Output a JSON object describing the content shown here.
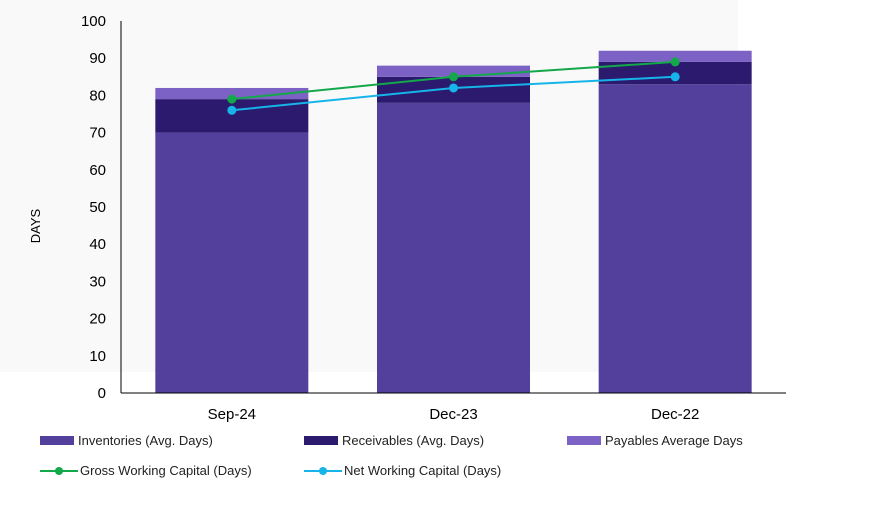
{
  "chart_data": {
    "type": "bar",
    "stacked": true,
    "categories": [
      "Sep-24",
      "Dec-23",
      "Dec-22"
    ],
    "ylabel": "DAYS",
    "ylim": [
      0,
      100
    ],
    "yticks": [
      "0",
      "10",
      "20",
      "30",
      "40",
      "50",
      "60",
      "70",
      "80",
      "90",
      "100"
    ],
    "grid": false,
    "legend_position": "bottom",
    "series": [
      {
        "name": "Inventories (Avg. Days)",
        "kind": "bar",
        "values": [
          70,
          78,
          83
        ],
        "color": "#533f9c"
      },
      {
        "name": "Receivables (Avg. Days)",
        "kind": "bar",
        "values": [
          9,
          7,
          6
        ],
        "color": "#2b1a6e"
      },
      {
        "name": "Payables Average Days",
        "kind": "bar",
        "values": [
          3,
          3,
          3
        ],
        "color": "#7b62c4"
      },
      {
        "name": "Gross Working Capital (Days)",
        "kind": "line",
        "values": [
          79,
          85,
          89
        ],
        "color": "#13a84a"
      },
      {
        "name": "Net Working Capital (Days)",
        "kind": "line",
        "values": [
          76,
          82,
          85
        ],
        "color": "#16b4e8"
      }
    ]
  }
}
